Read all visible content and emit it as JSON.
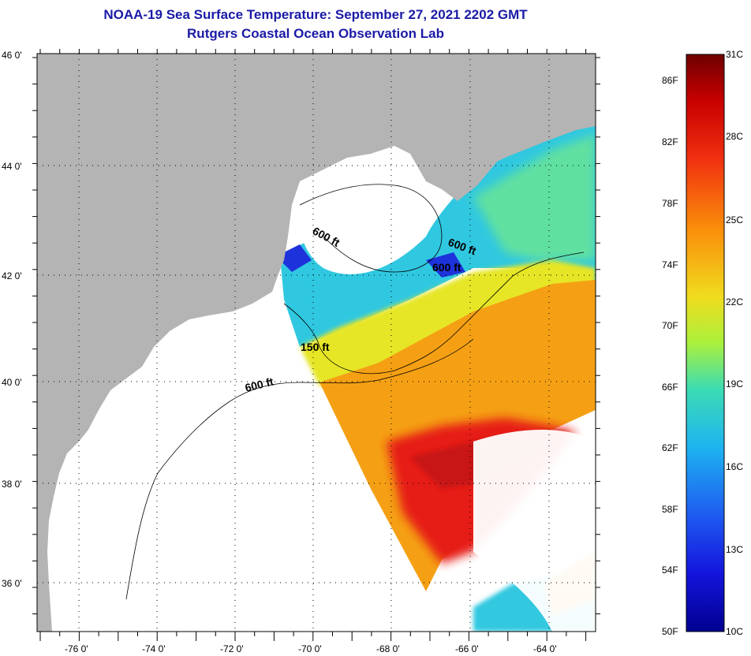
{
  "header": {
    "title": "NOAA-19 Sea Surface Temperature:  September 27, 2021 2202 GMT",
    "subtitle": "Rutgers Coastal Ocean Observation Lab"
  },
  "map": {
    "lat_labels": [
      "46 0'",
      "44 0'",
      "42 0'",
      "40 0'",
      "38 0'",
      "36 0'"
    ],
    "lon_labels": [
      "-76 0'",
      "-74 0'",
      "-72 0'",
      "-70 0'",
      "-68 0'",
      "-66 0'",
      "-64 0'"
    ],
    "depth_labels": [
      "600 ft",
      "600 ft",
      "600 ft",
      "150 ft",
      "600 ft"
    ],
    "colors": {
      "land": "#b4b4b4",
      "no_data": "#ffffff",
      "cold": "#1e32dc",
      "cool": "#30c8e0",
      "mild": "#60e0a0",
      "warm_yellow": "#e6e628",
      "warm_orange": "#f5a014",
      "hot_red": "#e61e14",
      "hot_dark": "#c81414"
    }
  },
  "colorbar": {
    "f_labels": [
      "86F",
      "82F",
      "78F",
      "74F",
      "70F",
      "66F",
      "62F",
      "58F",
      "54F",
      "50F"
    ],
    "c_labels": [
      "31C",
      "28C",
      "25C",
      "22C",
      "19C",
      "16C",
      "13C",
      "10C"
    ],
    "range_f": [
      50,
      89
    ],
    "range_c": [
      10,
      31
    ]
  }
}
